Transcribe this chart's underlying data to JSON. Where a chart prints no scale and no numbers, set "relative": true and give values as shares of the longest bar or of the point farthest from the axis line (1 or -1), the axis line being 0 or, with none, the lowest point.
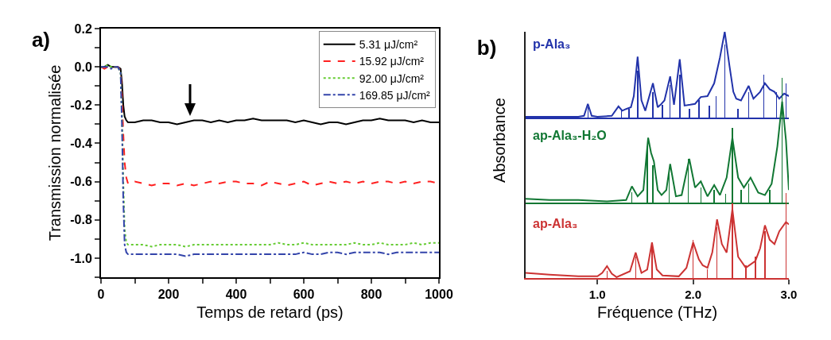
{
  "chart_data": [
    {
      "type": "line",
      "title": "a)",
      "xlabel": "Temps de retard (ps)",
      "ylabel": "Transmission normalisée",
      "legend": "top right",
      "xlim": [
        0,
        1000
      ],
      "ylim": [
        -1.1,
        0.2
      ],
      "xticks": [
        0,
        {
          "value": 100,
          "label": null
        },
        200,
        {
          "value": 300,
          "label": null
        },
        400,
        {
          "value": 500,
          "label": null
        },
        600,
        {
          "value": 700,
          "label": null
        },
        800,
        {
          "value": 900,
          "label": null
        },
        1000
      ],
      "yticks": [
        {
          "value": -1.1,
          "label": null
        },
        {
          "value": -1.0,
          "label": "-1.0"
        },
        {
          "value": -0.9,
          "label": null
        },
        -0.8,
        {
          "value": -0.7,
          "label": null
        },
        -0.6,
        {
          "value": -0.5,
          "label": null
        },
        -0.4,
        {
          "value": -0.3,
          "label": null
        },
        -0.2,
        {
          "value": -0.1,
          "label": null
        },
        {
          "value": 0,
          "label": "0.0"
        },
        {
          "value": 0.1,
          "label": null
        },
        0.2
      ],
      "x": [
        0,
        10,
        20,
        30,
        40,
        50,
        58,
        62,
        66,
        70,
        75,
        80,
        90,
        100,
        125,
        150,
        175,
        200,
        225,
        250,
        275,
        300,
        325,
        350,
        375,
        400,
        425,
        450,
        475,
        500,
        525,
        550,
        575,
        600,
        625,
        650,
        675,
        700,
        725,
        750,
        775,
        800,
        825,
        850,
        875,
        900,
        925,
        950,
        975,
        1000
      ],
      "series": [
        {
          "name": "5.31 μJ/cm²",
          "color": "#000000",
          "line_style": "solid",
          "values": [
            0,
            0,
            0.01,
            0,
            0,
            0,
            -0.01,
            -0.08,
            -0.2,
            -0.26,
            -0.28,
            -0.29,
            -0.29,
            -0.29,
            -0.28,
            -0.28,
            -0.29,
            -0.29,
            -0.3,
            -0.29,
            -0.28,
            -0.28,
            -0.29,
            -0.28,
            -0.29,
            -0.28,
            -0.28,
            -0.27,
            -0.28,
            -0.28,
            -0.28,
            -0.28,
            -0.29,
            -0.28,
            -0.29,
            -0.3,
            -0.29,
            -0.29,
            -0.3,
            -0.29,
            -0.28,
            -0.28,
            -0.27,
            -0.28,
            -0.28,
            -0.28,
            -0.29,
            -0.28,
            -0.29,
            -0.29
          ]
        },
        {
          "name": "15.92 μJ/cm²",
          "color": "#ff2020",
          "line_style": "dashed",
          "values": [
            0,
            -0.01,
            0,
            0,
            0,
            0,
            -0.02,
            -0.15,
            -0.35,
            -0.5,
            -0.58,
            -0.61,
            -0.61,
            -0.6,
            -0.61,
            -0.62,
            -0.61,
            -0.61,
            -0.62,
            -0.61,
            -0.62,
            -0.61,
            -0.6,
            -0.61,
            -0.6,
            -0.6,
            -0.61,
            -0.61,
            -0.62,
            -0.6,
            -0.61,
            -0.62,
            -0.61,
            -0.6,
            -0.62,
            -0.61,
            -0.6,
            -0.61,
            -0.6,
            -0.61,
            -0.6,
            -0.61,
            -0.6,
            -0.6,
            -0.61,
            -0.6,
            -0.61,
            -0.6,
            -0.6,
            -0.61
          ]
        },
        {
          "name": "92.00 μJ/cm²",
          "color": "#66cc33",
          "line_style": "dotted",
          "values": [
            0,
            0,
            0.01,
            0,
            0,
            0,
            -0.03,
            -0.25,
            -0.6,
            -0.85,
            -0.92,
            -0.93,
            -0.93,
            -0.93,
            -0.93,
            -0.94,
            -0.93,
            -0.93,
            -0.93,
            -0.94,
            -0.93,
            -0.93,
            -0.93,
            -0.93,
            -0.93,
            -0.93,
            -0.93,
            -0.93,
            -0.93,
            -0.93,
            -0.92,
            -0.93,
            -0.93,
            -0.92,
            -0.93,
            -0.93,
            -0.93,
            -0.93,
            -0.93,
            -0.92,
            -0.93,
            -0.93,
            -0.92,
            -0.93,
            -0.93,
            -0.93,
            -0.92,
            -0.93,
            -0.92,
            -0.92
          ]
        },
        {
          "name": "169.85 μJ/cm²",
          "color": "#3344aa",
          "line_style": "dashdot",
          "values": [
            0,
            0,
            0,
            -0.01,
            0,
            0,
            -0.03,
            -0.3,
            -0.7,
            -0.93,
            -0.97,
            -0.98,
            -0.98,
            -0.98,
            -0.98,
            -0.98,
            -0.98,
            -0.98,
            -0.98,
            -0.99,
            -0.98,
            -0.98,
            -0.98,
            -0.98,
            -0.98,
            -0.98,
            -0.98,
            -0.98,
            -0.98,
            -0.98,
            -0.98,
            -0.98,
            -0.98,
            -0.97,
            -0.98,
            -0.98,
            -0.97,
            -0.97,
            -0.98,
            -0.97,
            -0.97,
            -0.97,
            -0.97,
            -0.98,
            -0.97,
            -0.97,
            -0.97,
            -0.97,
            -0.97,
            -0.97
          ]
        }
      ]
    },
    {
      "type": "line",
      "title": "b)",
      "relative": true,
      "tick_labels": false,
      "xlim": [
        0.25,
        3.0
      ],
      "series": [
        {
          "name": "p-Ala₃",
          "color": "#2233aa",
          "x": [
            0.25,
            0.5,
            0.8,
            0.86,
            0.9,
            0.94,
            1.0,
            1.15,
            1.22,
            1.26,
            1.3,
            1.35,
            1.38,
            1.42,
            1.46,
            1.5,
            1.58,
            1.63,
            1.66,
            1.7,
            1.76,
            1.8,
            1.86,
            1.91,
            1.97,
            2.02,
            2.08,
            2.15,
            2.22,
            2.28,
            2.33,
            2.38,
            2.42,
            2.45,
            2.5,
            2.58,
            2.63,
            2.7,
            2.75,
            2.8,
            2.85,
            2.9,
            2.95,
            3.0
          ],
          "values": [
            0.01,
            0.01,
            0.01,
            0.02,
            0.16,
            0.02,
            0.01,
            0.02,
            0.13,
            0.08,
            0.1,
            0.12,
            0.25,
            0.71,
            0.2,
            0.08,
            0.4,
            0.12,
            0.15,
            0.2,
            0.48,
            0.15,
            0.68,
            0.14,
            0.15,
            0.16,
            0.24,
            0.25,
            0.4,
            0.7,
            1.0,
            0.6,
            0.3,
            0.22,
            0.2,
            0.37,
            0.22,
            0.3,
            0.4,
            0.33,
            0.3,
            0.22,
            0.28,
            0.25
          ]
        },
        {
          "type": "bar",
          "color": "#2233aa",
          "x": [
            0.9,
            1.25,
            1.33,
            1.42,
            1.58,
            1.68,
            1.76,
            1.86,
            1.96,
            2.06,
            2.17,
            2.24,
            2.33,
            2.47,
            2.58,
            2.74,
            2.87,
            2.97
          ],
          "values": [
            0.12,
            0.08,
            0.1,
            0.55,
            0.3,
            0.15,
            0.38,
            0.5,
            0.1,
            0.2,
            0.14,
            0.25,
            0.85,
            0.1,
            0.3,
            0.5,
            0.3,
            0.4
          ]
        }
      ]
    },
    {
      "type": "line",
      "ylabel": "Absorbance",
      "relative": true,
      "tick_labels": false,
      "xlim": [
        0.25,
        3.0
      ],
      "series": [
        {
          "name": "ap-Ala₃-H₂O",
          "color": "#117733",
          "x": [
            0.25,
            0.5,
            0.8,
            1.1,
            1.3,
            1.36,
            1.42,
            1.48,
            1.53,
            1.56,
            1.59,
            1.63,
            1.67,
            1.72,
            1.76,
            1.82,
            1.88,
            1.96,
            2.02,
            2.08,
            2.15,
            2.22,
            2.28,
            2.35,
            2.41,
            2.47,
            2.53,
            2.6,
            2.68,
            2.75,
            2.82,
            2.88,
            2.93,
            2.97,
            3.0
          ],
          "values": [
            0.03,
            0.02,
            0.02,
            0.01,
            0.02,
            0.13,
            0.05,
            0.1,
            0.52,
            0.4,
            0.33,
            0.1,
            0.06,
            0.1,
            0.31,
            0.05,
            0.06,
            0.35,
            0.12,
            0.17,
            0.05,
            0.14,
            0.06,
            0.2,
            0.52,
            0.2,
            0.12,
            0.2,
            0.08,
            0.06,
            0.15,
            0.45,
            0.81,
            0.5,
            0.1
          ]
        },
        {
          "type": "bar",
          "color": "#117733",
          "x": [
            1.36,
            1.52,
            1.58,
            1.75,
            1.95,
            2.08,
            2.22,
            2.34,
            2.41,
            2.5,
            2.58,
            2.8,
            2.93
          ],
          "values": [
            0.08,
            0.45,
            0.3,
            0.25,
            0.35,
            0.12,
            0.1,
            0.07,
            0.6,
            0.1,
            0.15,
            0.1,
            1.0
          ]
        }
      ]
    },
    {
      "type": "line",
      "xlabel": "Fréquence (THz)",
      "relative": true,
      "tick_labels": "x",
      "xlim": [
        0.25,
        3.0
      ],
      "xticks": [
        {
          "value": 1,
          "label": "1.0"
        },
        {
          "value": 2,
          "label": "2.0"
        },
        {
          "value": 3,
          "label": "3.0"
        }
      ],
      "series": [
        {
          "name": "ap-Ala₃",
          "color": "#cc3333",
          "x": [
            0.25,
            0.5,
            0.8,
            1.0,
            1.05,
            1.1,
            1.15,
            1.2,
            1.34,
            1.4,
            1.46,
            1.52,
            1.57,
            1.62,
            1.68,
            1.85,
            1.93,
            2.0,
            2.06,
            2.1,
            2.15,
            2.2,
            2.25,
            2.3,
            2.35,
            2.41,
            2.47,
            2.55,
            2.65,
            2.7,
            2.75,
            2.8,
            2.85,
            2.9,
            2.97,
            3.0
          ],
          "values": [
            0.06,
            0.04,
            0.02,
            0.02,
            0.06,
            0.14,
            0.05,
            0.01,
            0.08,
            0.3,
            0.06,
            0.1,
            0.42,
            0.1,
            0.03,
            0.02,
            0.12,
            0.42,
            0.22,
            0.15,
            0.12,
            0.3,
            0.69,
            0.4,
            0.3,
            0.81,
            0.25,
            0.12,
            0.2,
            0.35,
            0.62,
            0.45,
            0.4,
            0.55,
            0.66,
            0.63
          ]
        },
        {
          "type": "bar",
          "color": "#cc3333",
          "x": [
            1.1,
            1.4,
            1.57,
            2.0,
            2.15,
            2.25,
            2.41,
            2.55,
            2.65,
            2.75,
            2.97
          ],
          "values": [
            0.08,
            0.25,
            0.38,
            0.45,
            0.1,
            0.6,
            0.88,
            0.15,
            0.25,
            0.55,
            1.0
          ]
        }
      ]
    }
  ]
}
